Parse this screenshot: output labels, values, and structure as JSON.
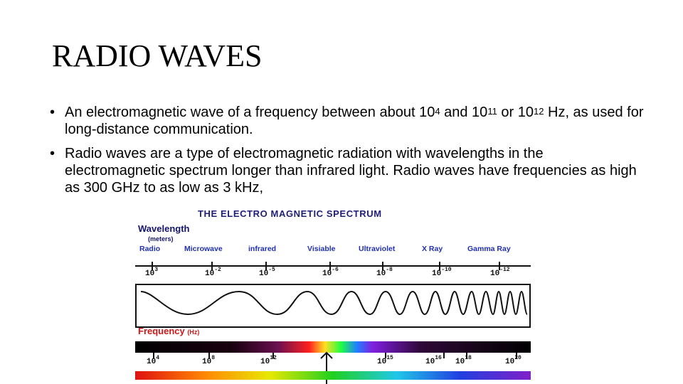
{
  "slide": {
    "title": "RADIO WAVES",
    "bullet_char": "•",
    "bullets": [
      {
        "parts": [
          "An electromagnetic wave of a frequency between about 10",
          "4",
          " and 10",
          "11",
          " or 10",
          "12",
          " Hz, as used for long-distance communication."
        ]
      },
      {
        "text": "Radio waves are a type of electromagnetic radiation with wavelengths in the electromagnetic spectrum longer than infrared light. Radio waves have frequencies as high as 300 GHz to as low as 3 kHz,"
      }
    ]
  },
  "spectrum": {
    "title": "THE ELECTRO MAGNETIC SPECTRUM",
    "wavelength_label": "Wavelength",
    "wavelength_unit": "(meters)",
    "bands": [
      "Radio",
      "Microwave",
      "infrared",
      "Visiable",
      "Ultraviolet",
      "X Ray",
      "Gamma Ray"
    ],
    "wavelength_ticks": [
      {
        "base": "10",
        "exp": "3"
      },
      {
        "base": "10",
        "exp": "-2"
      },
      {
        "base": "10",
        "exp": "-5"
      },
      {
        "base": "10",
        "exp": "-6"
      },
      {
        "base": "10",
        "exp": "-8"
      },
      {
        "base": "10",
        "exp": "-10"
      },
      {
        "base": "10",
        "exp": "-12"
      }
    ],
    "frequency_label": "Frequency",
    "frequency_unit": "(Hz)",
    "frequency_ticks": [
      {
        "base": "10",
        "exp": "4"
      },
      {
        "base": "10",
        "exp": "8"
      },
      {
        "base": "10",
        "exp": "12"
      },
      {
        "base": "10",
        "exp": "15"
      },
      {
        "base": "10",
        "exp": "16"
      },
      {
        "base": "10",
        "exp": "18"
      },
      {
        "base": "10",
        "exp": "20"
      }
    ],
    "colors": {
      "title": "#1f1f7a",
      "band_labels": "#1f2fb4",
      "frequency_label": "#d01818"
    }
  }
}
